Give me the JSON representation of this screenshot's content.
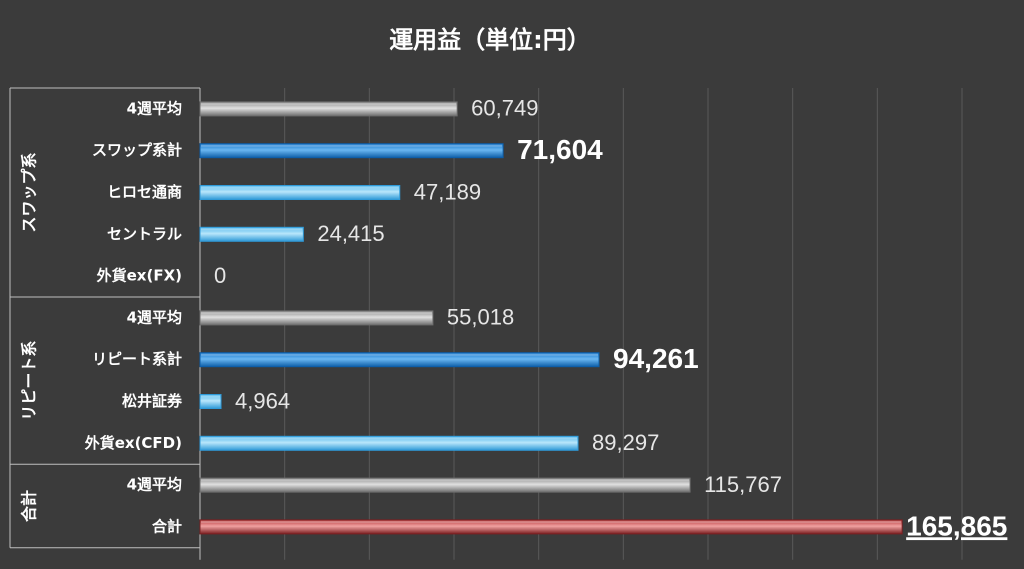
{
  "chart_data": {
    "type": "bar",
    "orientation": "horizontal",
    "title": "運用益（単位:円）",
    "xlim": [
      0,
      180000
    ],
    "grid": true,
    "groups": [
      {
        "label": "スワップ系",
        "items": [
          {
            "category": "4週平均",
            "value": 60749,
            "value_label": "60,749",
            "style": "gray"
          },
          {
            "category": "スワップ系計",
            "value": 71604,
            "value_label": "71,604",
            "style": "blue",
            "emphasis": "bold"
          },
          {
            "category": "ヒロセ通商",
            "value": 47189,
            "value_label": "47,189",
            "style": "lightblue"
          },
          {
            "category": "セントラル",
            "value": 24415,
            "value_label": "24,415",
            "style": "lightblue"
          },
          {
            "category": "外貨ex(FX)",
            "value": 0,
            "value_label": "0",
            "style": "lightblue"
          }
        ]
      },
      {
        "label": "リピート系",
        "items": [
          {
            "category": "4週平均",
            "value": 55018,
            "value_label": "55,018",
            "style": "gray"
          },
          {
            "category": "リピート系計",
            "value": 94261,
            "value_label": "94,261",
            "style": "blue",
            "emphasis": "bold"
          },
          {
            "category": "松井証券",
            "value": 4964,
            "value_label": "4,964",
            "style": "lightblue"
          },
          {
            "category": "外貨ex(CFD)",
            "value": 89297,
            "value_label": "89,297",
            "style": "lightblue"
          }
        ]
      },
      {
        "label": "合計",
        "items": [
          {
            "category": "4週平均",
            "value": 115767,
            "value_label": "115,767",
            "style": "gray"
          },
          {
            "category": "合計",
            "value": 165865,
            "value_label": "165,865",
            "style": "red",
            "emphasis": "bold-underline"
          }
        ]
      }
    ],
    "colors": {
      "background": "#3b3b3b",
      "grid": "#5a5a5a",
      "axis": "#bfbfbf",
      "gray": [
        "#6e6e6e",
        "#e0e0e0",
        "#8a8a8a"
      ],
      "blue": [
        "#0d5ea8",
        "#6ab7f2",
        "#1778cc"
      ],
      "lightblue": [
        "#2f9ad8",
        "#b8e6fb",
        "#4fb7ec"
      ],
      "red": [
        "#7a1f21",
        "#f0a0a0",
        "#b63a3c"
      ]
    }
  }
}
